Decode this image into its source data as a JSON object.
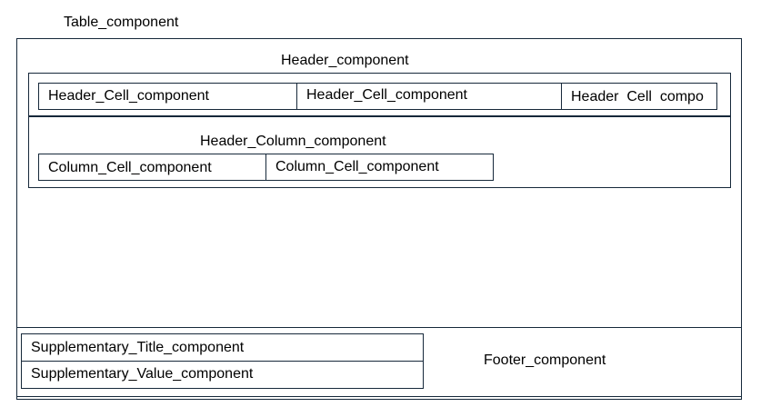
{
  "table_label": "Table_component",
  "header": {
    "label": "Header_component",
    "cells": [
      "Header_Cell_component",
      "Header_Cell_component",
      "Header  Cell  compo"
    ]
  },
  "header_column": {
    "label": "Header_Column_component",
    "cells": [
      "Column_Cell_component",
      "Column_Cell_component"
    ]
  },
  "supplementary": {
    "title": "Supplementary_Title_component",
    "value": "Supplementary_Value_component"
  },
  "footer_label": "Footer_component",
  "line_color": "#16283a"
}
